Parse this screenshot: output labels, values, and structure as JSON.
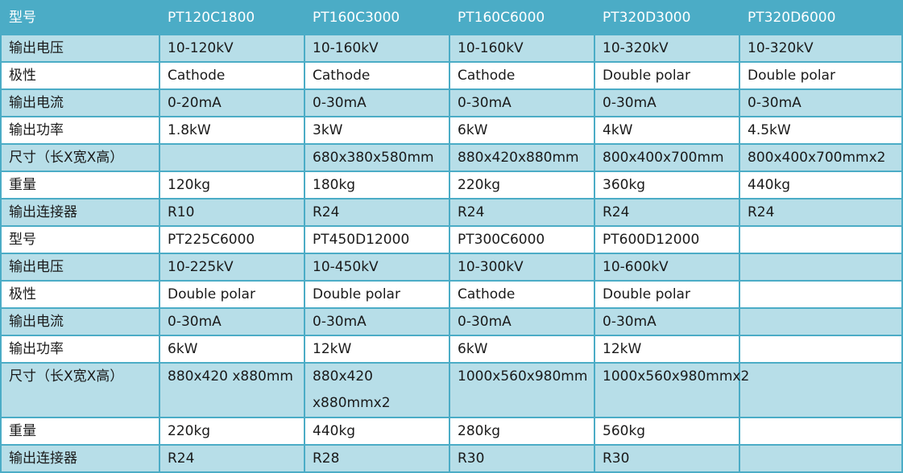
{
  "table": {
    "colors": {
      "header_bg": "#4bacc6",
      "band_bg": "#b7dee8",
      "border": "#4bacc6"
    },
    "rows": [
      {
        "type": "header",
        "cells": [
          "型号",
          "PT120C1800",
          "PT160C3000",
          "PT160C6000",
          "PT320D3000",
          "PT320D6000"
        ]
      },
      {
        "type": "blue",
        "cells": [
          "输出电压",
          "10-120kV",
          "10-160kV",
          "10-160kV",
          "10-320kV",
          "10-320kV"
        ]
      },
      {
        "type": "white",
        "cells": [
          "极性",
          "Cathode",
          "Cathode",
          "Cathode",
          "Double polar",
          "Double polar"
        ]
      },
      {
        "type": "blue",
        "cells": [
          "输出电流",
          "0-20mA",
          "0-30mA",
          "0-30mA",
          "0-30mA",
          "0-30mA"
        ]
      },
      {
        "type": "white",
        "cells": [
          "输出功率",
          "1.8kW",
          "3kW",
          "6kW",
          "4kW",
          "4.5kW"
        ]
      },
      {
        "type": "blue",
        "cells": [
          "尺寸（长X宽X高）",
          "",
          "680x380x580mm",
          "880x420x880mm",
          "800x400x700mm",
          "800x400x700mmx2"
        ]
      },
      {
        "type": "white",
        "cells": [
          "重量",
          "120kg",
          "180kg",
          "220kg",
          "360kg",
          "440kg"
        ]
      },
      {
        "type": "blue",
        "cells": [
          "输出连接器",
          "R10",
          "R24",
          "R24",
          "R24",
          "R24"
        ]
      },
      {
        "type": "white",
        "cells": [
          "型号",
          "PT225C6000",
          "PT450D12000",
          "PT300C6000",
          "PT600D12000",
          ""
        ]
      },
      {
        "type": "blue",
        "cells": [
          "输出电压",
          "10-225kV",
          "10-450kV",
          "10-300kV",
          "10-600kV",
          ""
        ]
      },
      {
        "type": "white",
        "cells": [
          "极性",
          "Double polar",
          "Double polar",
          "Cathode",
          "Double polar",
          ""
        ]
      },
      {
        "type": "blue",
        "cells": [
          "输出电流",
          "0-30mA",
          "0-30mA",
          "0-30mA",
          "0-30mA",
          ""
        ]
      },
      {
        "type": "white",
        "cells": [
          "输出功率",
          "6kW",
          "12kW",
          "6kW",
          "12kW",
          ""
        ]
      },
      {
        "type": "blue tall",
        "cells": [
          "尺寸（长X宽X高）",
          "880x420 x880mm",
          "880x420 x880mmx2",
          "1000x560x980mm",
          "1000x560x980mmx2",
          ""
        ]
      },
      {
        "type": "white",
        "cells": [
          "重量",
          "220kg",
          "440kg",
          "280kg",
          "560kg",
          ""
        ]
      },
      {
        "type": "blue",
        "cells": [
          "输出连接器",
          "R24",
          "R28",
          "R30",
          "R30",
          ""
        ]
      }
    ]
  }
}
